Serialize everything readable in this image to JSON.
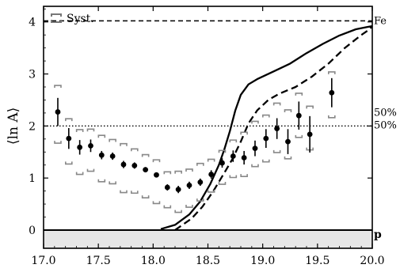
{
  "chart_data": {
    "type": "scatter",
    "title": "",
    "xlabel": "",
    "ylabel": "⟨ln A⟩",
    "xlim": [
      17.0,
      20.0
    ],
    "ylim": [
      -0.35,
      4.3
    ],
    "x_ticks": [
      17.0,
      17.5,
      18.0,
      18.5,
      19.0,
      19.5,
      20.0
    ],
    "x_tick_labels": [
      "17.0",
      "17.5",
      "18.0",
      "18.5",
      "19.0",
      "19.5",
      "20.0"
    ],
    "y_ticks": [
      0,
      1,
      2,
      3,
      4
    ],
    "y_tick_labels": [
      "0",
      "1",
      "2",
      "3",
      "4"
    ],
    "grid": false,
    "legend": {
      "position": "top-left",
      "syst_label": "Syst."
    },
    "reference_lines": [
      {
        "y": 4.02,
        "label": "Fe",
        "style": "dashed"
      },
      {
        "y": 2.0,
        "label": "50%",
        "style": "dotted"
      },
      {
        "y": 0.0,
        "label": "p",
        "style": "solid"
      }
    ],
    "right_labels": [
      "50%",
      "50%"
    ],
    "series": [
      {
        "kind": "measurement",
        "points": [
          {
            "x": 17.13,
            "y": 2.27,
            "err": 0.27,
            "syst_lo": 1.67,
            "syst_hi": 2.78
          },
          {
            "x": 17.23,
            "y": 1.76,
            "err": 0.2,
            "syst_lo": 1.27,
            "syst_hi": 2.14
          },
          {
            "x": 17.33,
            "y": 1.59,
            "err": 0.14,
            "syst_lo": 1.07,
            "syst_hi": 1.93
          },
          {
            "x": 17.43,
            "y": 1.62,
            "err": 0.12,
            "syst_lo": 1.13,
            "syst_hi": 1.94
          },
          {
            "x": 17.53,
            "y": 1.44,
            "err": 0.08,
            "syst_lo": 0.93,
            "syst_hi": 1.82
          },
          {
            "x": 17.63,
            "y": 1.42,
            "err": 0.07,
            "syst_lo": 0.89,
            "syst_hi": 1.74
          },
          {
            "x": 17.73,
            "y": 1.26,
            "err": 0.07,
            "syst_lo": 0.72,
            "syst_hi": 1.66
          },
          {
            "x": 17.83,
            "y": 1.24,
            "err": 0.06,
            "syst_lo": 0.71,
            "syst_hi": 1.56
          },
          {
            "x": 17.93,
            "y": 1.16,
            "err": 0.05,
            "syst_lo": 0.62,
            "syst_hi": 1.45
          },
          {
            "x": 18.03,
            "y": 1.06,
            "err": 0.05,
            "syst_lo": 0.51,
            "syst_hi": 1.35
          },
          {
            "x": 18.13,
            "y": 0.82,
            "err": 0.06,
            "syst_lo": 0.43,
            "syst_hi": 1.12
          },
          {
            "x": 18.23,
            "y": 0.78,
            "err": 0.07,
            "syst_lo": 0.34,
            "syst_hi": 1.13
          },
          {
            "x": 18.33,
            "y": 0.86,
            "err": 0.07,
            "syst_lo": 0.44,
            "syst_hi": 1.17
          },
          {
            "x": 18.43,
            "y": 0.92,
            "err": 0.07,
            "syst_lo": 0.56,
            "syst_hi": 1.28
          },
          {
            "x": 18.53,
            "y": 1.07,
            "err": 0.08,
            "syst_lo": 0.73,
            "syst_hi": 1.36
          },
          {
            "x": 18.63,
            "y": 1.29,
            "err": 0.09,
            "syst_lo": 0.88,
            "syst_hi": 1.53
          },
          {
            "x": 18.73,
            "y": 1.42,
            "err": 0.11,
            "syst_lo": 1.01,
            "syst_hi": 1.73
          },
          {
            "x": 18.83,
            "y": 1.39,
            "err": 0.13,
            "syst_lo": 1.03,
            "syst_hi": 1.88
          },
          {
            "x": 18.93,
            "y": 1.57,
            "err": 0.15,
            "syst_lo": 1.22,
            "syst_hi": 2.09
          },
          {
            "x": 19.03,
            "y": 1.76,
            "err": 0.18,
            "syst_lo": 1.31,
            "syst_hi": 2.21
          },
          {
            "x": 19.13,
            "y": 1.95,
            "err": 0.2,
            "syst_lo": 1.49,
            "syst_hi": 2.44
          },
          {
            "x": 19.23,
            "y": 1.7,
            "err": 0.24,
            "syst_lo": 1.37,
            "syst_hi": 2.31
          },
          {
            "x": 19.33,
            "y": 2.2,
            "err": 0.27,
            "syst_lo": 1.78,
            "syst_hi": 2.63
          },
          {
            "x": 19.43,
            "y": 1.84,
            "err": 0.35,
            "syst_lo": 1.54,
            "syst_hi": 2.38
          },
          {
            "x": 19.63,
            "y": 2.64,
            "err": 0.28,
            "syst_lo": 2.16,
            "syst_hi": 3.04
          }
        ]
      },
      {
        "kind": "model-solid",
        "x": [
          18.07,
          18.2,
          18.33,
          18.43,
          18.52,
          18.6,
          18.65,
          18.7,
          18.75,
          18.8,
          18.87,
          18.95,
          19.1,
          19.25,
          19.4,
          19.55,
          19.7,
          19.85,
          19.95,
          20.0
        ],
        "y": [
          0.02,
          0.1,
          0.3,
          0.55,
          0.88,
          1.25,
          1.55,
          1.9,
          2.3,
          2.6,
          2.8,
          2.9,
          3.05,
          3.2,
          3.4,
          3.58,
          3.74,
          3.86,
          3.9,
          3.92
        ]
      },
      {
        "kind": "model-dashed",
        "x": [
          18.2,
          18.35,
          18.45,
          18.55,
          18.65,
          18.72,
          18.8,
          18.87,
          18.95,
          19.05,
          19.15,
          19.3,
          19.45,
          19.6,
          19.75,
          19.9,
          19.97,
          20.0
        ],
        "y": [
          0.0,
          0.22,
          0.45,
          0.75,
          1.1,
          1.35,
          1.7,
          2.05,
          2.3,
          2.5,
          2.62,
          2.75,
          2.95,
          3.2,
          3.5,
          3.75,
          3.85,
          3.92
        ]
      }
    ]
  }
}
